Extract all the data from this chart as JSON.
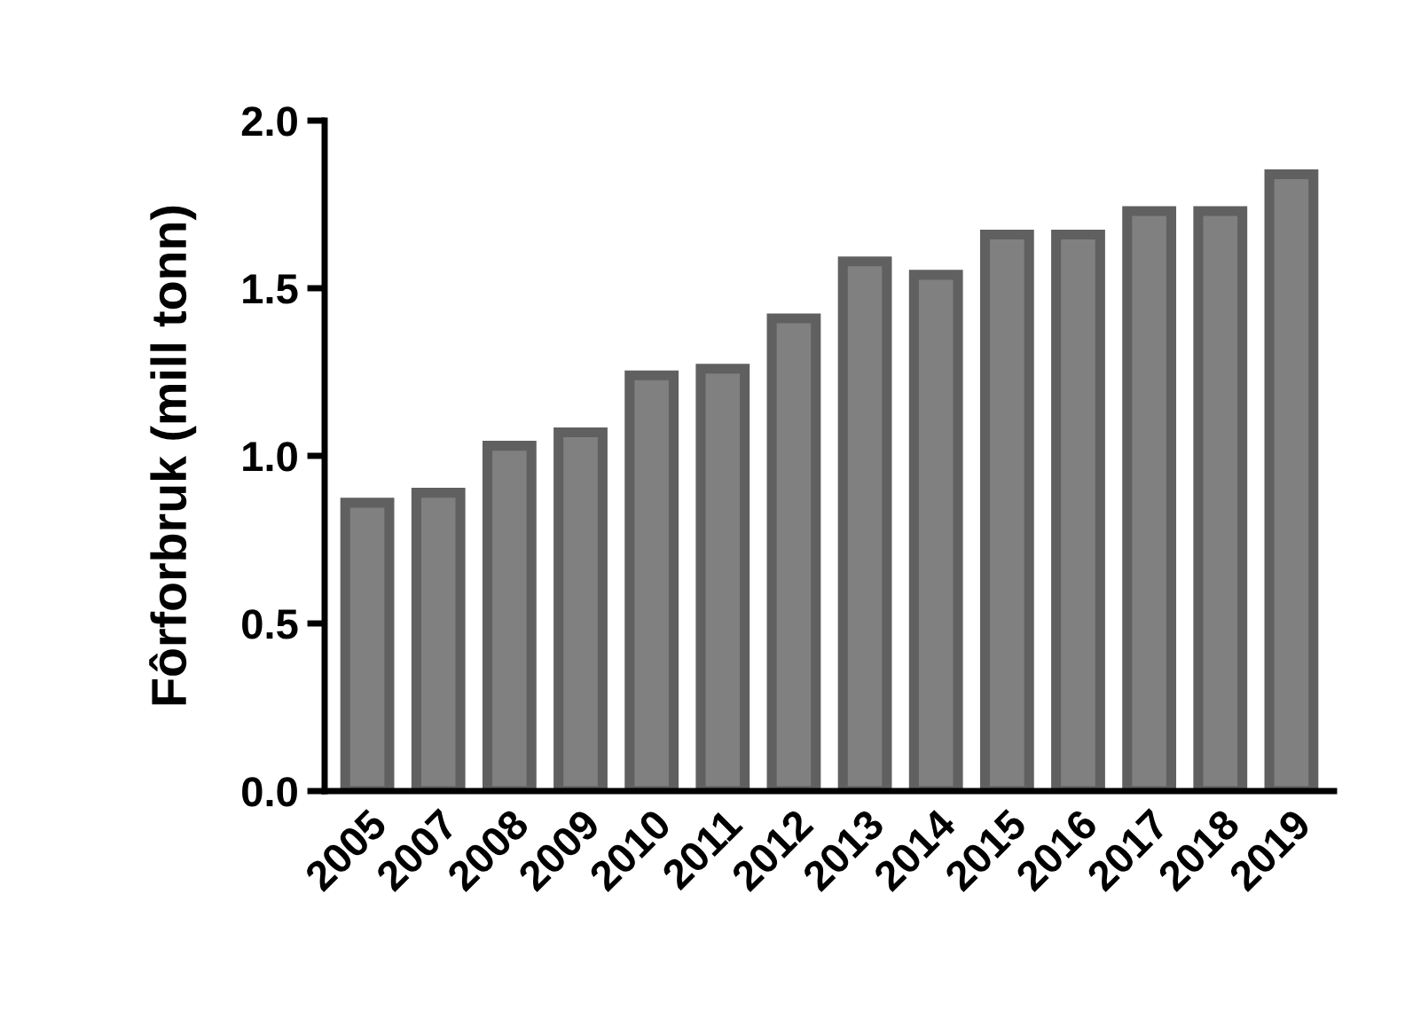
{
  "chart_data": {
    "type": "bar",
    "ylabel": "Fôrforbruk (mill tonn)",
    "categories": [
      "2005",
      "2007",
      "2008",
      "2009",
      "2010",
      "2011",
      "2012",
      "2013",
      "2014",
      "2015",
      "2016",
      "2017",
      "2018",
      "2019"
    ],
    "values": [
      0.86,
      0.89,
      1.03,
      1.07,
      1.24,
      1.26,
      1.41,
      1.58,
      1.54,
      1.66,
      1.66,
      1.73,
      1.73,
      1.84
    ],
    "color": "#808080",
    "ylim": [
      0,
      2.0
    ],
    "yticks": [
      {
        "value": 0,
        "label": "0.0"
      },
      {
        "value": 0.5,
        "label": "0.5"
      },
      {
        "value": 1.0,
        "label": "1.0"
      },
      {
        "value": 1.5,
        "label": "1.5"
      },
      {
        "value": 2.0,
        "label": "2.0"
      }
    ],
    "grid": false,
    "legend": false
  }
}
